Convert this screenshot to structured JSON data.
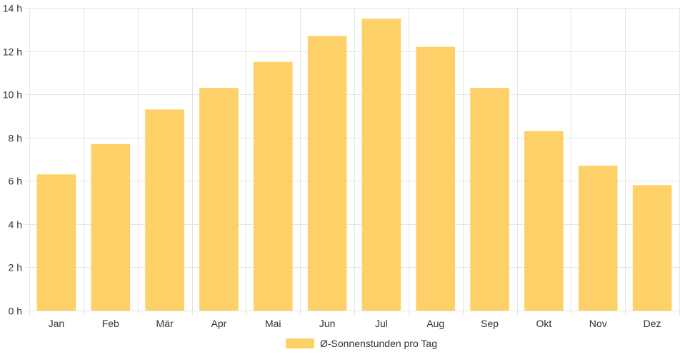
{
  "chart_data": {
    "type": "bar",
    "categories": [
      "Jan",
      "Feb",
      "Mär",
      "Apr",
      "Mai",
      "Jun",
      "Jul",
      "Aug",
      "Sep",
      "Okt",
      "Nov",
      "Dez"
    ],
    "series": [
      {
        "name": "Ø-Sonnenstunden pro Tag",
        "color": "#fdd168",
        "values": [
          6.3,
          7.7,
          9.3,
          10.3,
          11.5,
          12.7,
          13.5,
          12.2,
          10.3,
          8.3,
          6.7,
          5.8
        ]
      }
    ],
    "ylim": [
      0,
      14
    ],
    "yticks": [
      0,
      2,
      4,
      6,
      8,
      10,
      12,
      14
    ],
    "ytick_labels": [
      "0 h",
      "2 h",
      "4 h",
      "6 h",
      "8 h",
      "10 h",
      "12 h",
      "14 h"
    ],
    "grid": true,
    "legend_position": "bottom"
  }
}
